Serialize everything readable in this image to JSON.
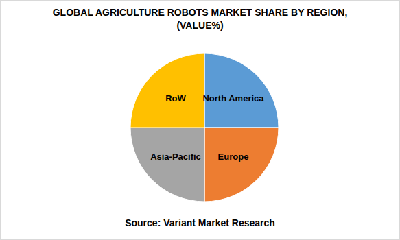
{
  "chart_data": {
    "type": "pie",
    "title": "GLOBAL AGRICULTURE ROBOTS MARKET SHARE BY REGION, (VALUE%)",
    "categories": [
      "North America",
      "Europe",
      "Asia-Pacific",
      "RoW"
    ],
    "values": [
      25,
      25,
      25,
      25
    ],
    "colors": [
      "#5b9bd5",
      "#ed7d31",
      "#a5a5a5",
      "#ffc000"
    ],
    "annotations": [
      "Source: Variant Market Research"
    ]
  }
}
